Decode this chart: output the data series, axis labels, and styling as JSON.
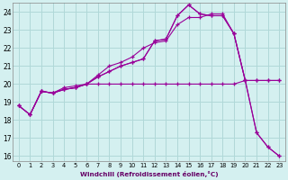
{
  "xlabel": "Windchill (Refroidissement éolien,°C)",
  "bg_color": "#d4f0f0",
  "grid_color": "#b0d8d8",
  "line_color": "#990099",
  "x_ticks": [
    0,
    1,
    2,
    3,
    4,
    5,
    6,
    7,
    8,
    9,
    10,
    11,
    12,
    13,
    14,
    15,
    16,
    17,
    18,
    19,
    20,
    21,
    22,
    23
  ],
  "y_ticks": [
    16,
    17,
    18,
    19,
    20,
    21,
    22,
    23,
    24
  ],
  "xlim": [
    -0.5,
    23.5
  ],
  "ylim": [
    15.7,
    24.5
  ],
  "series": [
    {
      "x": [
        0,
        1,
        2,
        3,
        4,
        5,
        6,
        7,
        8,
        9,
        10,
        11,
        12,
        13,
        14,
        15,
        16,
        17,
        18,
        19,
        20,
        21,
        22,
        23
      ],
      "y": [
        18.8,
        18.3,
        19.6,
        19.5,
        19.7,
        19.8,
        20.0,
        20.4,
        20.7,
        21.0,
        21.2,
        21.4,
        22.4,
        22.5,
        23.8,
        24.4,
        23.9,
        23.8,
        23.8,
        22.8,
        20.2,
        17.3,
        16.5,
        16.0
      ]
    },
    {
      "x": [
        0,
        1,
        2,
        3,
        4,
        5,
        6,
        7,
        8,
        9,
        10,
        11,
        12,
        13,
        14,
        15,
        16,
        17,
        18,
        19,
        20,
        21,
        22,
        23
      ],
      "y": [
        18.8,
        18.3,
        19.6,
        19.5,
        19.7,
        19.8,
        20.0,
        20.5,
        21.0,
        21.2,
        21.5,
        22.0,
        22.3,
        22.4,
        23.3,
        23.7,
        23.7,
        23.9,
        23.9,
        22.8,
        20.2,
        20.2,
        20.2,
        20.2
      ]
    },
    {
      "x": [
        0,
        1,
        2,
        3,
        4,
        5,
        6,
        7,
        8,
        9,
        10,
        11,
        12,
        13,
        14,
        15,
        16,
        17,
        18,
        19,
        20,
        21,
        22,
        23
      ],
      "y": [
        18.8,
        18.3,
        19.6,
        19.5,
        19.8,
        19.9,
        20.0,
        20.0,
        20.0,
        20.0,
        20.0,
        20.0,
        20.0,
        20.0,
        20.0,
        20.0,
        20.0,
        20.0,
        20.0,
        20.0,
        20.2,
        17.3,
        16.5,
        16.0
      ]
    },
    {
      "x": [
        1,
        2,
        3,
        4,
        5,
        6,
        7,
        8,
        9,
        10,
        11,
        12,
        13,
        14,
        15,
        16,
        17,
        18,
        19,
        20,
        21,
        22,
        23
      ],
      "y": [
        18.3,
        19.6,
        19.5,
        19.7,
        19.8,
        20.0,
        20.4,
        20.7,
        21.0,
        21.2,
        21.4,
        22.4,
        22.5,
        23.8,
        24.4,
        23.9,
        23.8,
        23.8,
        22.8,
        20.2,
        20.2,
        20.2,
        20.2
      ]
    }
  ]
}
